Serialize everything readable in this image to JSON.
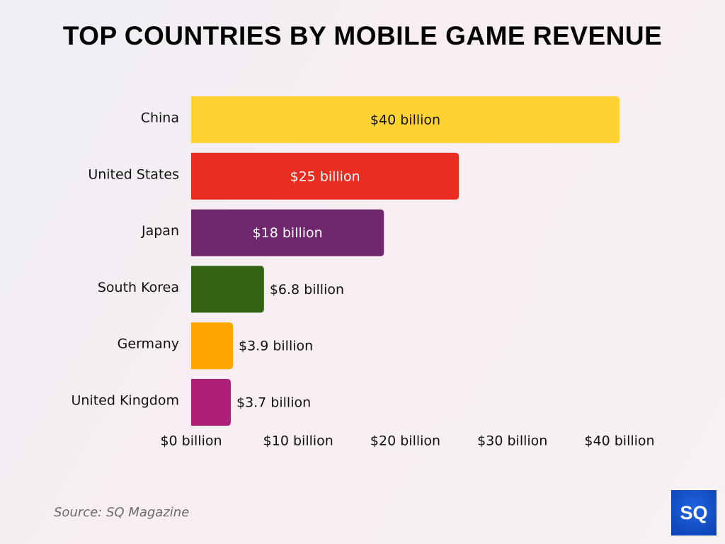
{
  "chart_data": {
    "type": "bar",
    "orientation": "horizontal",
    "title": "TOP COUNTRIES BY MOBILE GAME REVENUE",
    "categories": [
      "China",
      "United States",
      "Japan",
      "South Korea",
      "Germany",
      "United Kingdom"
    ],
    "values": [
      40,
      25,
      18,
      6.8,
      3.9,
      3.7
    ],
    "data_labels": [
      "$40 billion",
      "$25 billion",
      "$18 billion",
      "$6.8 billion",
      "$3.9 billion",
      "$3.7 billion"
    ],
    "colors": [
      "#FFD233",
      "#E82E21",
      "#71276E",
      "#326312",
      "#FFA600",
      "#AE1D78"
    ],
    "label_colors": [
      "#111111",
      "#ffffff",
      "#ffffff",
      "#111111",
      "#111111",
      "#111111"
    ],
    "xlim": [
      0,
      40
    ],
    "xticks": [
      0,
      10,
      20,
      30,
      40
    ],
    "xtick_labels": [
      "$0 billion",
      "$10 billion",
      "$20 billion",
      "$30 billion",
      "$40 billion"
    ],
    "xlabel": "",
    "ylabel": "",
    "grid": false
  },
  "source": "Source: SQ Magazine",
  "logo": "SQ"
}
